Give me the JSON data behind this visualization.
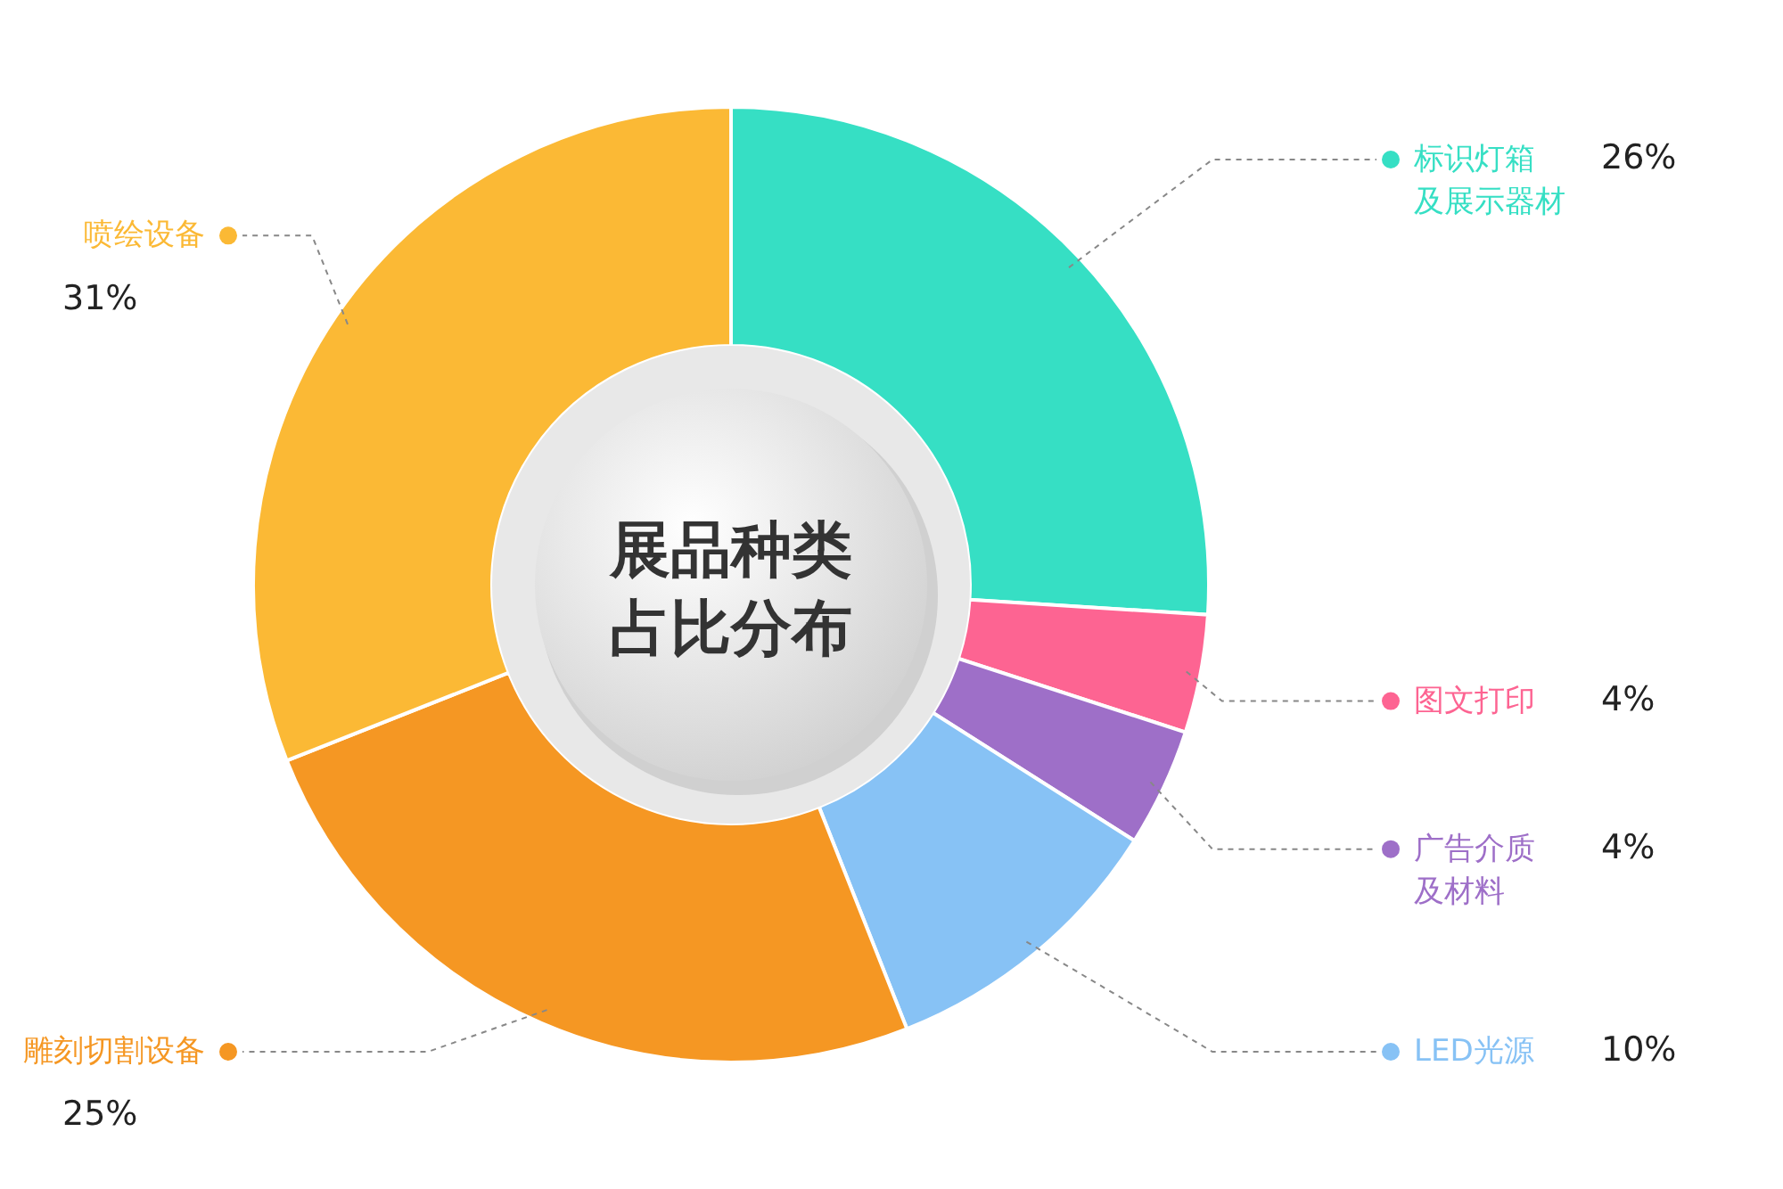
{
  "chart_data": {
    "type": "donut",
    "title": "展品种类占比分布",
    "legend": "right",
    "categories": [
      "标识灯箱及展示器材",
      "图文打印",
      "广告介质及材料",
      "LED光源",
      "雕刻切割设备",
      "喷绘设备"
    ],
    "values": [
      26,
      4,
      4,
      10,
      25,
      31
    ],
    "value_labels": [
      "26%",
      "4%",
      "4%",
      "10%",
      "25%",
      "31%"
    ],
    "colors": [
      "#36dfc4",
      "#fd6492",
      "#9e6fc8",
      "#87c2f5",
      "#f59723",
      "#fbb935"
    ]
  }
}
